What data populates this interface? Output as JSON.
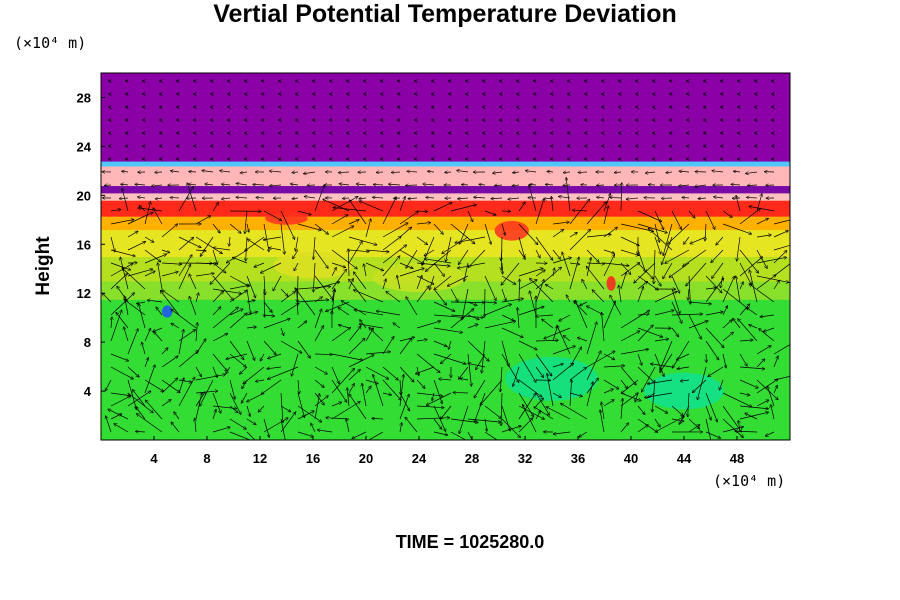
{
  "chart_data": {
    "type": "heatmap",
    "title": "Vertial Potential Temperature Deviation",
    "ylabel": "Height",
    "x_unit": "(×10⁴ m)",
    "y_unit": "(×10⁴ m)",
    "xlim": [
      0,
      52
    ],
    "ylim": [
      0,
      30
    ],
    "x_ticks": [
      4,
      8,
      12,
      16,
      20,
      24,
      28,
      32,
      36,
      40,
      44,
      48
    ],
    "y_ticks": [
      4,
      8,
      12,
      16,
      20,
      24,
      28
    ],
    "annotation": "TIME = 1025280.0",
    "overlay": "wind vector arrows",
    "color_layers": [
      {
        "y_from": 0,
        "y_to": 11.5,
        "color": "#33dd33"
      },
      {
        "y_from": 11.5,
        "y_to": 13,
        "color": "#88e02a"
      },
      {
        "y_from": 13,
        "y_to": 15,
        "color": "#b5e020"
      },
      {
        "y_from": 15,
        "y_to": 17.2,
        "color": "#e5e522"
      },
      {
        "y_from": 17.2,
        "y_to": 18.3,
        "color": "#ffb000"
      },
      {
        "y_from": 18.3,
        "y_to": 19.6,
        "color": "#ff2a1a"
      },
      {
        "y_from": 19.6,
        "y_to": 20.2,
        "color": "#ffc0c0"
      },
      {
        "y_from": 20.2,
        "y_to": 20.8,
        "color": "#7a0aa8"
      },
      {
        "y_from": 20.8,
        "y_to": 22.4,
        "color": "#ffb6b6"
      },
      {
        "y_from": 22.4,
        "y_to": 22.8,
        "color": "#50c8ff"
      },
      {
        "y_from": 22.8,
        "y_to": 30,
        "color": "#8a00a6"
      }
    ],
    "blobs": [
      {
        "x": 34,
        "y": 5,
        "rx": 3.5,
        "ry": 1.8,
        "color": "#10e088"
      },
      {
        "x": 44,
        "y": 4,
        "rx": 3,
        "ry": 1.5,
        "color": "#10e090"
      },
      {
        "x": 5,
        "y": 10.5,
        "rx": 0.4,
        "ry": 0.5,
        "color": "#2050ff"
      },
      {
        "x": 38.5,
        "y": 12.8,
        "rx": 0.35,
        "ry": 0.6,
        "color": "#ff2020"
      },
      {
        "x": 31,
        "y": 17.1,
        "rx": 1.3,
        "ry": 0.8,
        "color": "#ff3020"
      },
      {
        "x": 14,
        "y": 18.1,
        "rx": 1.6,
        "ry": 0.5,
        "color": "#ff3020"
      },
      {
        "x": 24,
        "y": 13.3,
        "rx": 3.5,
        "ry": 1.2,
        "color": "#c8e022"
      },
      {
        "x": 16,
        "y": 14.3,
        "rx": 3,
        "ry": 1.1,
        "color": "#dde022"
      }
    ]
  }
}
